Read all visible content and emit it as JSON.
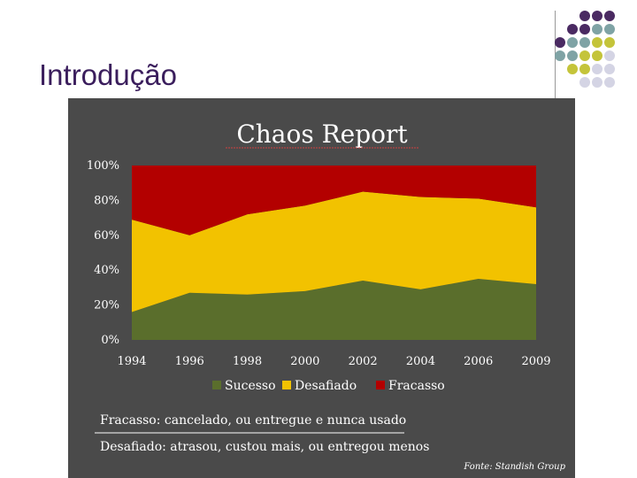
{
  "slide": {
    "title": "Introdução"
  },
  "decor": {
    "dot_colors": {
      "purple": "#4a2a62",
      "teal": "#7fa3a5",
      "olive": "#c4c43a",
      "lavender": "#d4d4e4"
    }
  },
  "chart_data": {
    "type": "area",
    "stacked": true,
    "title": "Chaos Report",
    "x": [
      "1994",
      "1996",
      "1998",
      "2000",
      "2002",
      "2004",
      "2006",
      "2009"
    ],
    "ylim": [
      0,
      100
    ],
    "yticks": [
      "0%",
      "20%",
      "40%",
      "60%",
      "80%",
      "100%"
    ],
    "series": [
      {
        "name": "Sucesso",
        "color": "#5a6e2c",
        "values": [
          16,
          27,
          26,
          28,
          34,
          29,
          35,
          32
        ]
      },
      {
        "name": "Desafiado",
        "color": "#f2c200",
        "values": [
          53,
          33,
          46,
          49,
          51,
          53,
          46,
          44
        ]
      },
      {
        "name": "Fracasso",
        "color": "#b30000",
        "values": [
          31,
          40,
          28,
          23,
          15,
          18,
          19,
          24
        ]
      }
    ],
    "legend_position": "bottom",
    "notes": [
      "Fracasso: cancelado, ou entregue e nunca usado",
      "Desafiado: atrasou, custou mais, ou entregou menos"
    ],
    "source": "Fonte: Standish Group"
  }
}
